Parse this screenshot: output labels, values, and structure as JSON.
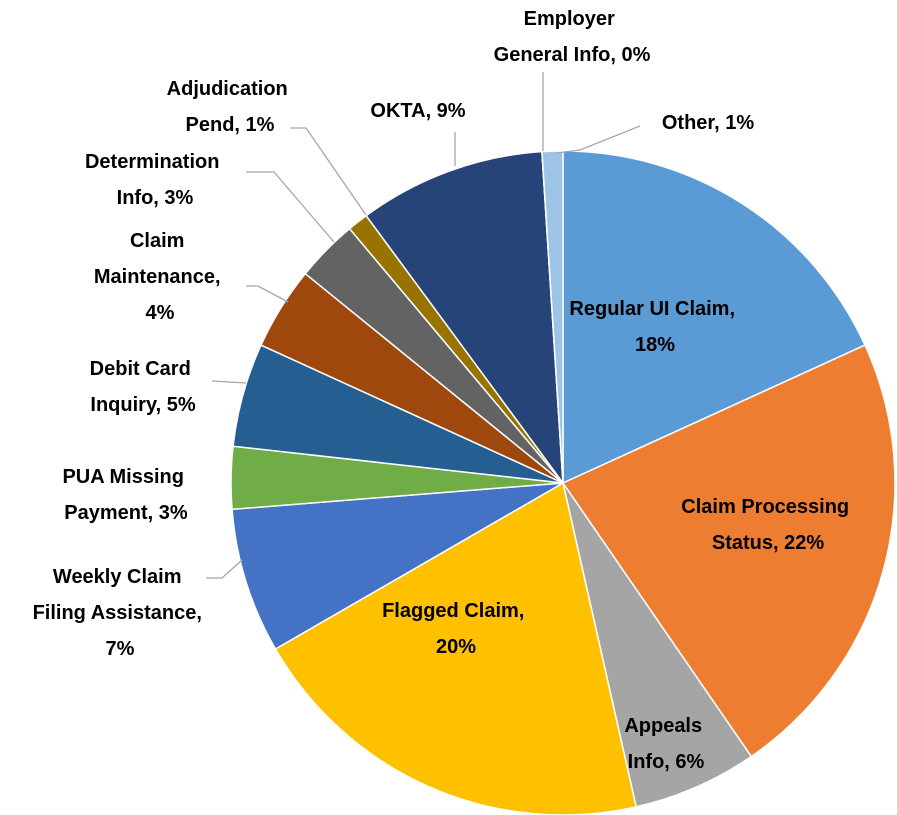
{
  "chart_data": {
    "type": "pie",
    "value_labels": [
      "Regular UI Claim, 18%",
      "Claim Processing Status, 22%",
      "Appeals Info, 6%",
      "Flagged Claim, 20%",
      "Weekly Claim Filing Assistance, 7%",
      "PUA Missing Payment, 3%",
      "Debit Card Inquiry, 5%",
      "Claim Maintenance, 4%",
      "Determination Info, 3%",
      "Adjudication Pend, 1%",
      "OKTA, 9%",
      "Employer General Info, 0%",
      "Other, 1%"
    ],
    "values": [
      18,
      22,
      6,
      20,
      7,
      3,
      5,
      4,
      3,
      1,
      9,
      0,
      1
    ],
    "colors": [
      "#5b9bd5",
      "#ed7d31",
      "#a5a5a5",
      "#ffc000",
      "#4472c4",
      "#70ad47",
      "#255e91",
      "#9e480e",
      "#636363",
      "#997300",
      "#264478",
      "#698ed0",
      "#9dc3e6"
    ]
  }
}
